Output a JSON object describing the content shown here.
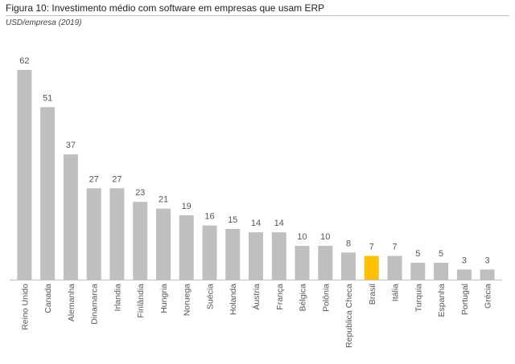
{
  "header": {
    "title": "Figura 10: Investimento médio com software em empresas que usam ERP",
    "subtitle": "USD/empresa (2019)"
  },
  "colors": {
    "bar": "#bfbfbf",
    "highlight": "#ffc000",
    "axis": "#bfbfbf"
  },
  "chart_data": {
    "type": "bar",
    "title": "Figura 10: Investimento médio com software em empresas que usam ERP",
    "subtitle": "USD/empresa (2019)",
    "xlabel": "",
    "ylabel": "",
    "ylim": [
      0,
      62
    ],
    "grid": false,
    "legend": "none",
    "highlight_category": "Brasil",
    "categories": [
      "Reino Unido",
      "Canada",
      "Alemanha",
      "Dinamarca",
      "Irlandia",
      "Finlândia",
      "Hungria",
      "Noruega",
      "Suécia",
      "Holanda",
      "Áustria",
      "França",
      "Bélgica",
      "Polônia",
      "Republica Checa",
      "Brasil",
      "Itália",
      "Turquia",
      "Espanha",
      "Portugal",
      "Grécia"
    ],
    "values": [
      62,
      51,
      37,
      27,
      27,
      23,
      21,
      19,
      16,
      15,
      14,
      14,
      10,
      10,
      8,
      7,
      7,
      5,
      5,
      3,
      3
    ]
  }
}
